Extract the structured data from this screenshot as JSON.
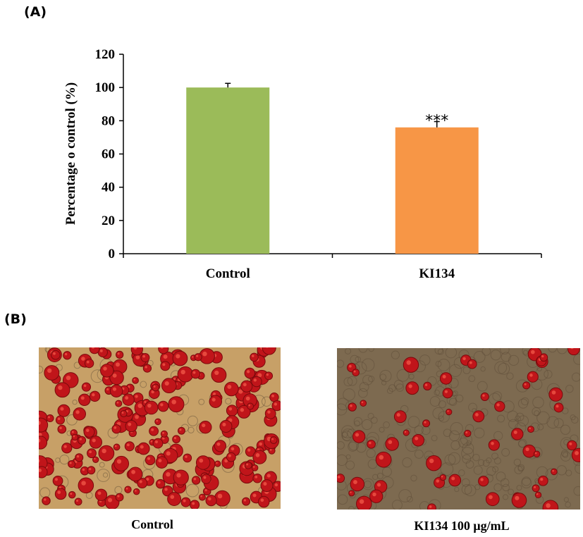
{
  "panel_a": {
    "label": "(A)"
  },
  "panel_b": {
    "label": "(B)",
    "images": [
      {
        "caption": "Control",
        "description_icon": "microscopy-image",
        "stain": "red lipid droplets, dense"
      },
      {
        "caption": "KI134 100 μg/mL",
        "description_icon": "microscopy-image",
        "stain": "red lipid droplets, sparse"
      }
    ]
  },
  "colors": {
    "control_bar": "#9BBB59",
    "ki134_bar": "#F79646",
    "axis": "#000000"
  },
  "chart_data": {
    "type": "bar",
    "categories": [
      "Control",
      "KI134"
    ],
    "values": [
      100,
      76
    ],
    "errors": [
      2.5,
      3.5
    ],
    "annotations": [
      "",
      "***"
    ],
    "ylabel": "Percentage o control (%)",
    "xlabel": "",
    "ylim": [
      0,
      120
    ],
    "yticks": [
      0,
      20,
      40,
      60,
      80,
      100,
      120
    ],
    "grid": false
  }
}
